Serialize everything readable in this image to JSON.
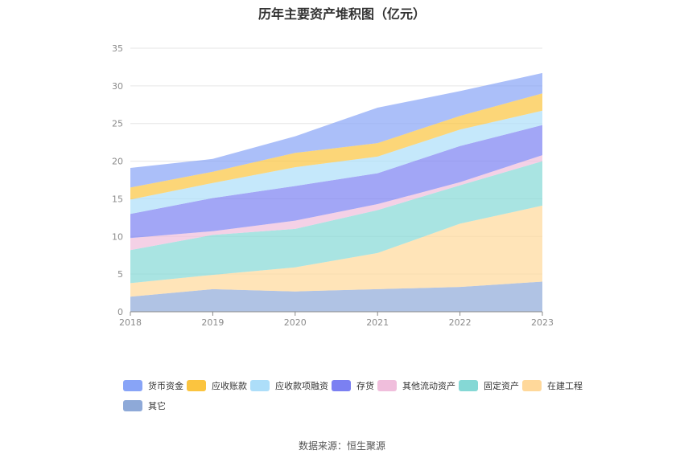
{
  "chart_data": {
    "type": "area",
    "stacked": true,
    "title": "历年主要资产堆积图（亿元）",
    "x": [
      "2018",
      "2019",
      "2020",
      "2021",
      "2022",
      "2023"
    ],
    "ylim": [
      0,
      35
    ],
    "yticks": [
      0,
      5,
      10,
      15,
      20,
      25,
      30,
      35
    ],
    "grid": true,
    "legend_position": "bottom",
    "series": [
      {
        "name": "其它",
        "color": "#8EA9D8",
        "values": [
          2.0,
          3.0,
          2.7,
          3.0,
          3.3,
          4.0
        ]
      },
      {
        "name": "在建工程",
        "color": "#FFD89A",
        "values": [
          1.8,
          1.9,
          3.2,
          4.8,
          8.4,
          10.1
        ]
      },
      {
        "name": "固定资产",
        "color": "#85D8D5",
        "values": [
          4.4,
          5.3,
          5.1,
          5.7,
          5.1,
          5.9
        ]
      },
      {
        "name": "其他流动资产",
        "color": "#F0BEDC",
        "values": [
          1.6,
          0.5,
          1.1,
          0.8,
          0.4,
          0.8
        ]
      },
      {
        "name": "存货",
        "color": "#7B80F2",
        "values": [
          3.2,
          4.4,
          4.6,
          4.1,
          4.8,
          4.0
        ]
      },
      {
        "name": "应收款项融资",
        "color": "#ADDEF9",
        "values": [
          1.9,
          2.0,
          2.5,
          2.2,
          2.2,
          1.9
        ]
      },
      {
        "name": "应收账款",
        "color": "#FBC43F",
        "values": [
          1.6,
          1.5,
          1.9,
          1.8,
          1.8,
          2.3
        ]
      },
      {
        "name": "货币资金",
        "color": "#88A4F7",
        "values": [
          2.6,
          1.7,
          2.2,
          4.7,
          3.3,
          2.7
        ]
      }
    ]
  },
  "legend": [
    {
      "label": "货币资金",
      "color": "#88A4F7"
    },
    {
      "label": "应收账款",
      "color": "#FBC43F"
    },
    {
      "label": "应收款项融资",
      "color": "#ADDEF9"
    },
    {
      "label": "存货",
      "color": "#7B80F2"
    },
    {
      "label": "其他流动资产",
      "color": "#F0BEDC"
    },
    {
      "label": "固定资产",
      "color": "#85D8D5"
    },
    {
      "label": "在建工程",
      "color": "#FFD89A"
    },
    {
      "label": "其它",
      "color": "#8EA9D8"
    }
  ],
  "source": "数据来源：恒生聚源"
}
